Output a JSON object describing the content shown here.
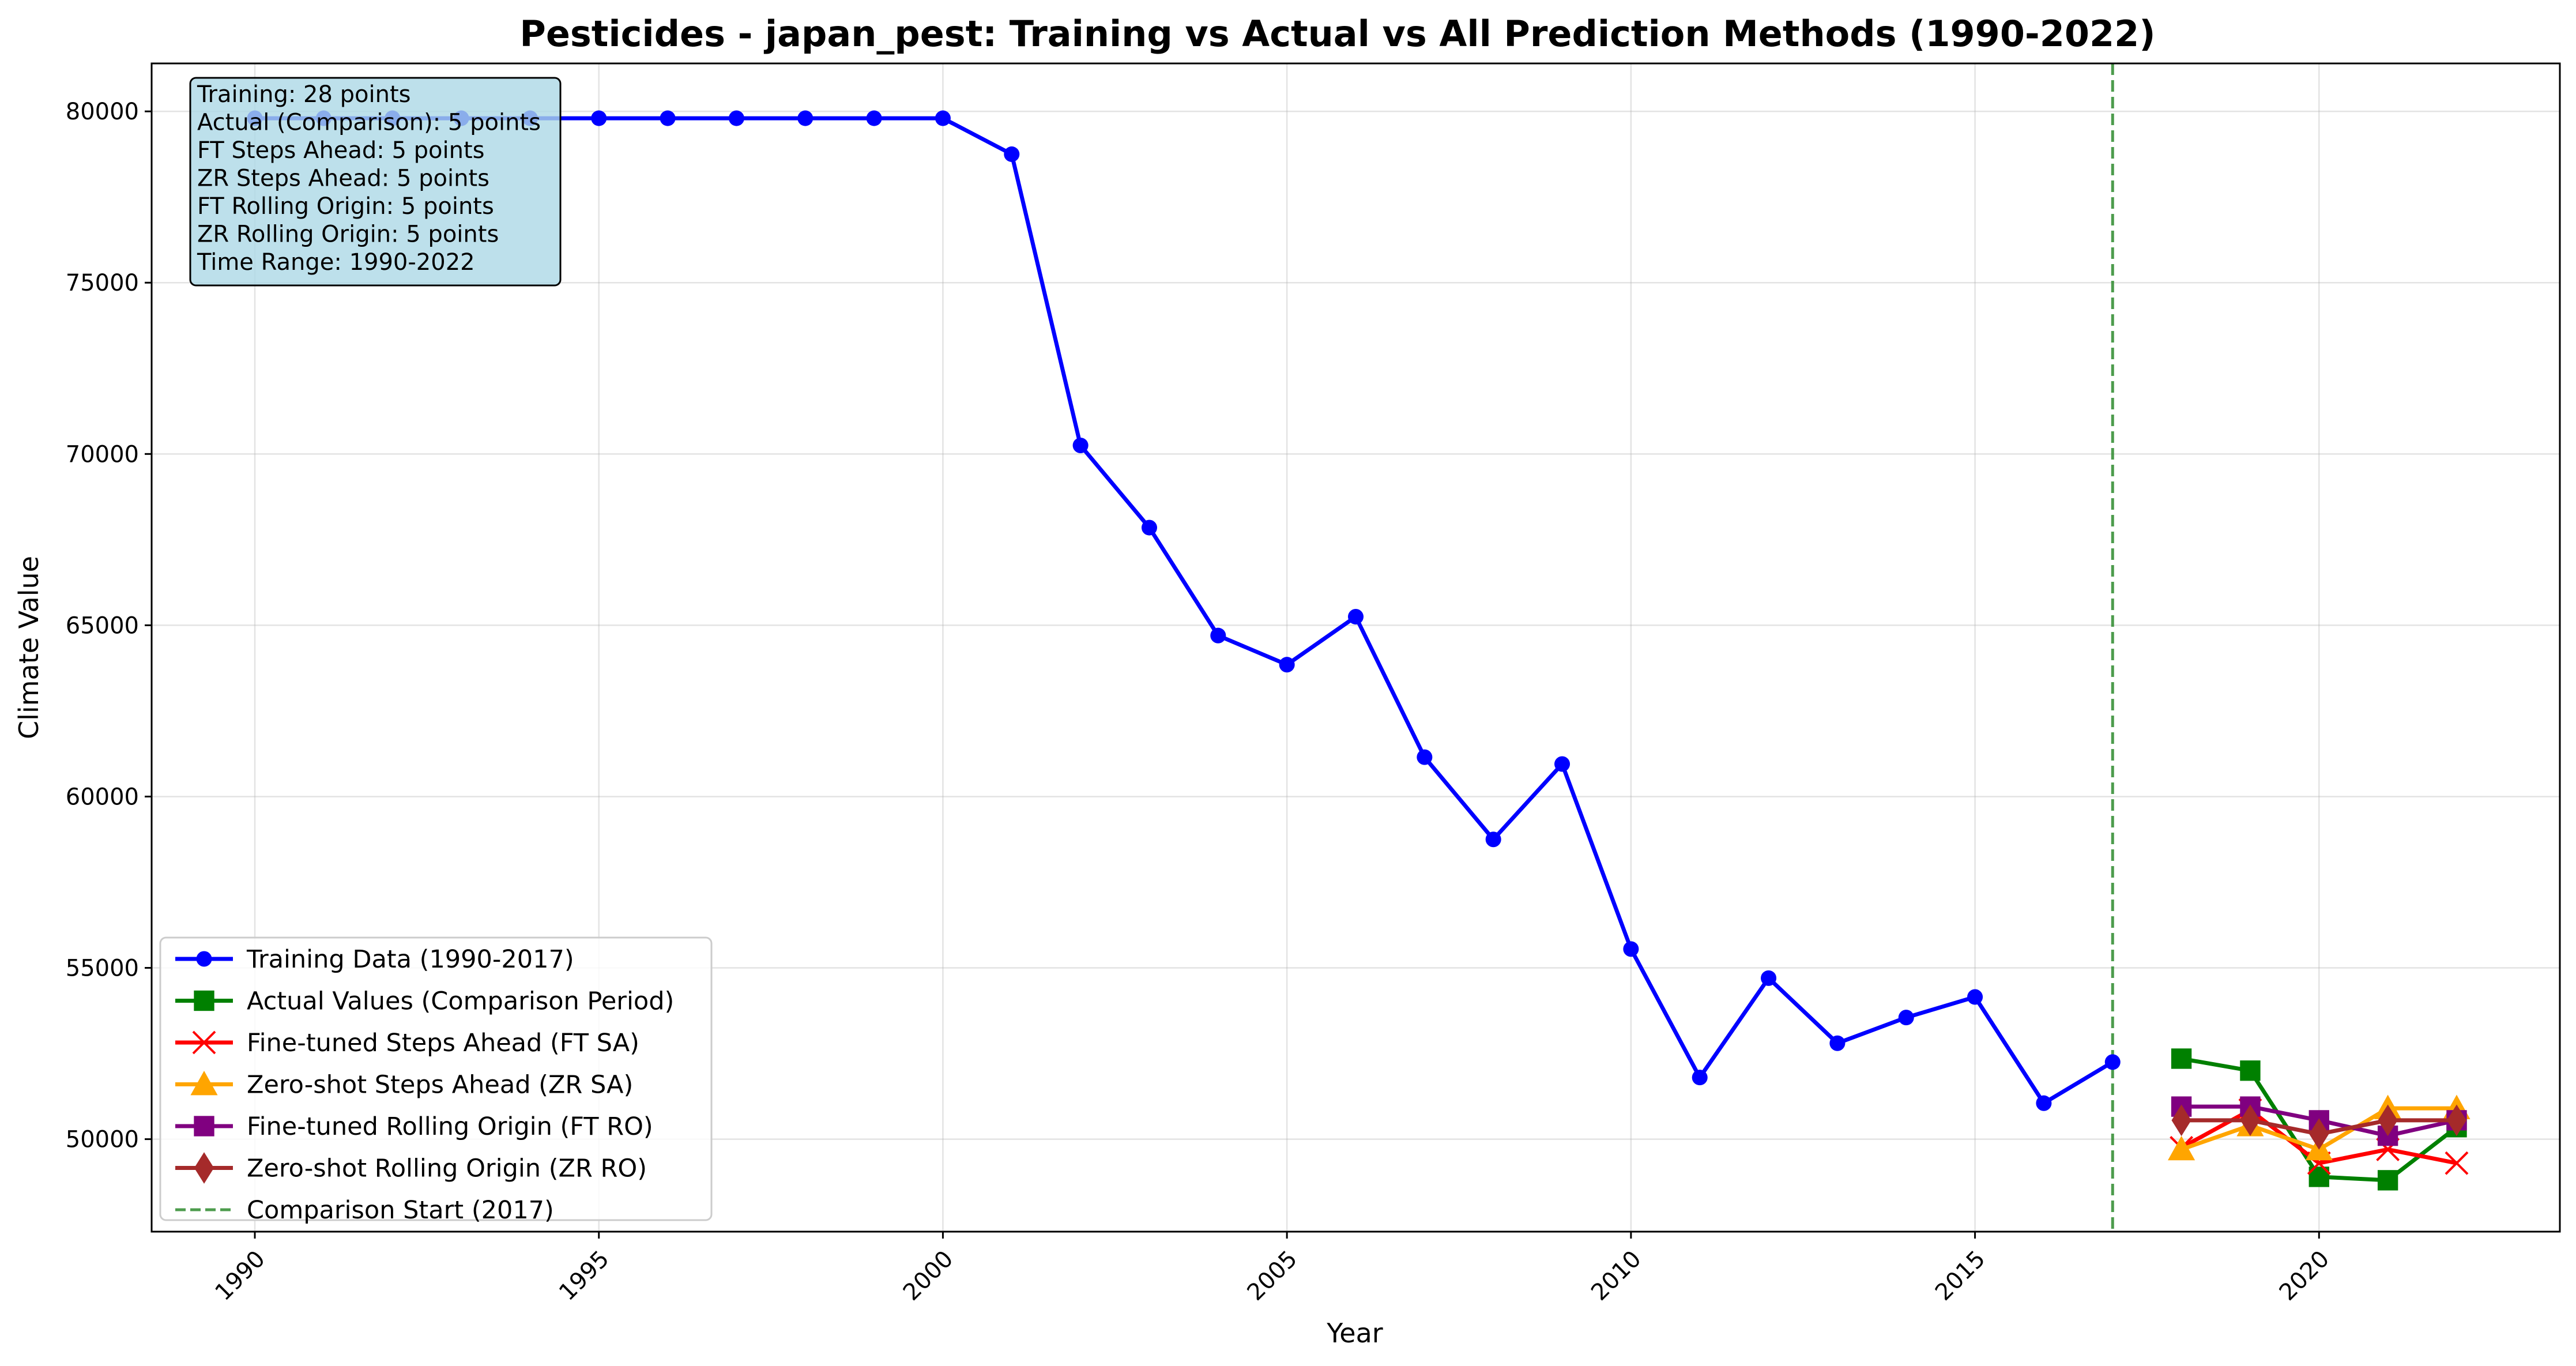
{
  "chart_data": {
    "type": "line",
    "title": "Pesticides - japan_pest: Training vs Actual vs All Prediction Methods (1990-2022)",
    "xlabel": "Year",
    "ylabel": "Climate Value",
    "xlim": [
      1988.5,
      2023.5
    ],
    "ylim": [
      47300,
      81400
    ],
    "x_ticks": [
      1990,
      1995,
      2000,
      2005,
      2010,
      2015,
      2020
    ],
    "y_ticks": [
      50000,
      55000,
      60000,
      65000,
      70000,
      75000,
      80000
    ],
    "grid": true,
    "legend_position": "lower-left",
    "comparison_start": {
      "x": 2017,
      "label": "Comparison Start (2017)",
      "color": "#2e8b2e"
    },
    "series": [
      {
        "name": "Training Data (1990-2017)",
        "color": "#0000ff",
        "marker": "circle",
        "x": [
          1990,
          1991,
          1992,
          1993,
          1994,
          1995,
          1996,
          1997,
          1998,
          1999,
          2000,
          2001,
          2002,
          2003,
          2004,
          2005,
          2006,
          2007,
          2008,
          2009,
          2010,
          2011,
          2012,
          2013,
          2014,
          2015,
          2016,
          2017
        ],
        "y": [
          79800,
          79800,
          79800,
          79800,
          79800,
          79800,
          79800,
          79800,
          79800,
          79800,
          79800,
          78750,
          70250,
          67850,
          64700,
          63850,
          65250,
          61150,
          58750,
          60950,
          55550,
          51800,
          54700,
          52800,
          53550,
          54150,
          51050,
          52250
        ]
      },
      {
        "name": "Actual Values (Comparison Period)",
        "color": "#008000",
        "marker": "square",
        "x": [
          2018,
          2019,
          2020,
          2021,
          2022
        ],
        "y": [
          52350,
          52000,
          48900,
          48800,
          50350
        ]
      },
      {
        "name": "Fine-tuned Steps Ahead (FT SA)",
        "color": "#ff0000",
        "marker": "x",
        "x": [
          2018,
          2019,
          2020,
          2021,
          2022
        ],
        "y": [
          49750,
          50850,
          49300,
          49700,
          49300
        ]
      },
      {
        "name": "Zero-shot Steps Ahead (ZR SA)",
        "color": "#ffa500",
        "marker": "triangle",
        "x": [
          2018,
          2019,
          2020,
          2021,
          2022
        ],
        "y": [
          49700,
          50400,
          49700,
          50900,
          50900
        ]
      },
      {
        "name": "Fine-tuned Rolling Origin (FT RO)",
        "color": "#800080",
        "marker": "square",
        "x": [
          2018,
          2019,
          2020,
          2021,
          2022
        ],
        "y": [
          50950,
          50950,
          50550,
          50100,
          50550
        ]
      },
      {
        "name": "Zero-shot Rolling Origin (ZR RO)",
        "color": "#a52a2a",
        "marker": "diamond",
        "x": [
          2018,
          2019,
          2020,
          2021,
          2022
        ],
        "y": [
          50550,
          50550,
          50150,
          50550,
          50550
        ]
      }
    ],
    "info_box": [
      "Training: 28 points",
      "Actual (Comparison): 5 points",
      "FT Steps Ahead: 5 points",
      "ZR Steps Ahead: 5 points",
      "FT Rolling Origin: 5 points",
      "ZR Rolling Origin: 5 points",
      "Time Range: 1990-2022"
    ]
  }
}
